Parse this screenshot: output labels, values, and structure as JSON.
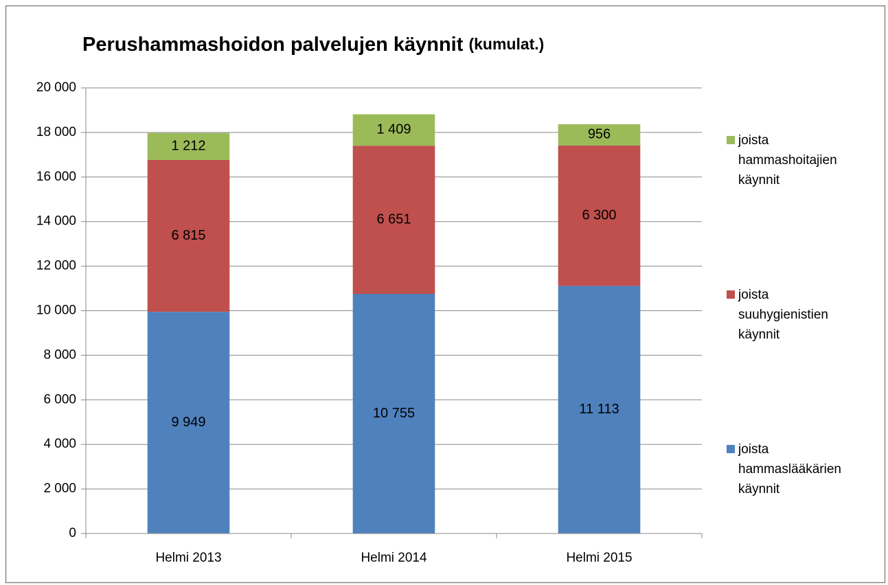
{
  "chart_data": {
    "type": "stacked_bar",
    "title": "Perushammashoidon palvelujen käynnit",
    "subtitle": "(kumulat.)",
    "categories": [
      "Helmi 2013",
      "Helmi 2014",
      "Helmi 2015"
    ],
    "series": [
      {
        "name": "joista hammaslääkärien käynnit",
        "color": "#4f81bd",
        "values": [
          9949,
          10755,
          11113
        ],
        "value_labels": [
          "9 949",
          "10 755",
          "11 113"
        ]
      },
      {
        "name": "joista suuhygienistien käynnit",
        "color": "#c0504d",
        "values": [
          6815,
          6651,
          6300
        ],
        "value_labels": [
          "6 815",
          "6 651",
          "6 300"
        ]
      },
      {
        "name": "joista hammashoitajien käynnit",
        "color": "#9bbb59",
        "values": [
          1212,
          1409,
          956
        ],
        "value_labels": [
          "1 212",
          "1 409",
          "956"
        ]
      }
    ],
    "ylim": [
      0,
      20000
    ],
    "yticks": [
      0,
      {
        "value": 2000,
        "label": "2 000"
      },
      {
        "value": 4000,
        "label": "4 000"
      },
      {
        "value": 6000,
        "label": "6 000"
      },
      {
        "value": 8000,
        "label": "8 000"
      },
      {
        "value": 10000,
        "label": "10 000"
      },
      {
        "value": 12000,
        "label": "12 000"
      },
      {
        "value": 14000,
        "label": "14 000"
      },
      {
        "value": 16000,
        "label": "16 000"
      },
      {
        "value": 18000,
        "label": "18 000"
      },
      {
        "value": 20000,
        "label": "20 000"
      }
    ],
    "grid": true,
    "legend": "right"
  }
}
